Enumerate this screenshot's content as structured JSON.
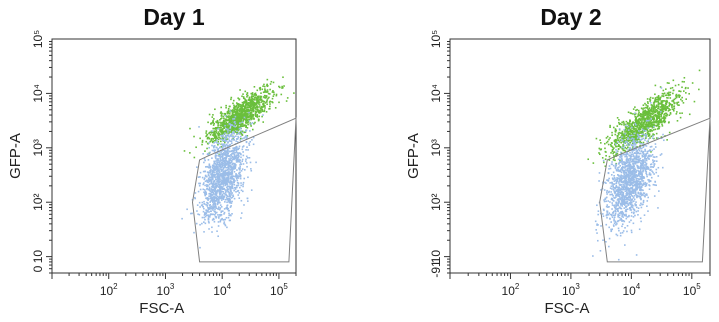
{
  "chart_data": [
    {
      "type": "scatter",
      "title": "Day 1",
      "xlabel": "FSC-A",
      "ylabel": "GFP-A",
      "xscale": "log",
      "yscale": "log",
      "x_ticks": [
        "10^2",
        "10^3",
        "10^4",
        "10^5"
      ],
      "y_ticks": [
        "0",
        "10^1",
        "10^2",
        "10^3",
        "10^4",
        "10^5"
      ],
      "y_tick_labels": [
        "0",
        "10",
        "10²",
        "10³",
        "10⁴",
        "10⁵"
      ],
      "xlim": [
        10,
        200000
      ],
      "ylim": [
        5,
        100000
      ],
      "series": [
        {
          "color": "#6abf3c",
          "x_center": 20000,
          "y_center": 4000,
          "x_spread_log": 0.28,
          "y_spread_log": 0.25,
          "corr": 0.8,
          "n": 1100
        },
        {
          "color": "#9bbde8",
          "x_center": 10000,
          "y_center": 300,
          "x_spread_log": 0.2,
          "y_spread_log": 0.42,
          "corr": 0.45,
          "n": 1400
        }
      ],
      "gate": {
        "color": "#808080",
        "x": [
          4000,
          5500,
          200000,
          150000,
          4000,
          3000
        ],
        "y": [
          600,
          700,
          3500,
          8,
          8,
          100
        ]
      }
    },
    {
      "type": "scatter",
      "title": "Day 2",
      "xlabel": "FSC-A",
      "ylabel": "GFP-A",
      "xscale": "log",
      "yscale": "log",
      "x_ticks": [
        "10^2",
        "10^3",
        "10^4",
        "10^5"
      ],
      "y_ticks": [
        "-91",
        "10^1",
        "10^2",
        "10^3",
        "10^4",
        "10^5"
      ],
      "y_tick_labels": [
        "-91",
        "10",
        "10²",
        "10³",
        "10⁴",
        "10⁵"
      ],
      "xlim": [
        10,
        200000
      ],
      "ylim": [
        5,
        100000
      ],
      "series": [
        {
          "color": "#6abf3c",
          "x_center": 16000,
          "y_center": 3000,
          "x_spread_log": 0.3,
          "y_spread_log": 0.28,
          "corr": 0.8,
          "n": 1100
        },
        {
          "color": "#9bbde8",
          "x_center": 9000,
          "y_center": 250,
          "x_spread_log": 0.2,
          "y_spread_log": 0.42,
          "corr": 0.45,
          "n": 1400
        }
      ],
      "gate": {
        "color": "#808080",
        "x": [
          4000,
          5500,
          200000,
          150000,
          4000,
          3000
        ],
        "y": [
          600,
          700,
          3500,
          8,
          8,
          100
        ]
      }
    }
  ]
}
